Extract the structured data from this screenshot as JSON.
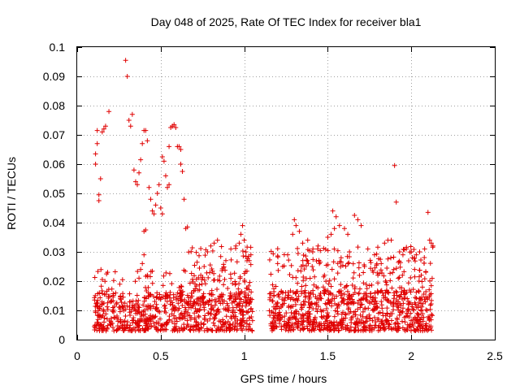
{
  "chart_data": {
    "type": "scatter",
    "title": "Day 048 of 2025, Rate Of TEC Index for receiver bla1",
    "xlabel": "GPS time / hours",
    "ylabel": "ROTI / TECUs",
    "xlim": [
      0,
      2.5
    ],
    "ylim": [
      0,
      0.1
    ],
    "xticks": [
      0,
      0.5,
      1,
      1.5,
      2,
      2.5
    ],
    "xtick_labels": [
      "0",
      "0.5",
      "1",
      "1.5",
      "2",
      "2.5"
    ],
    "yticks": [
      0,
      0.01,
      0.02,
      0.03,
      0.04,
      0.05,
      0.06,
      0.07,
      0.08,
      0.09,
      0.1
    ],
    "ytick_labels": [
      "0",
      "0.01",
      "0.02",
      "0.03",
      "0.04",
      "0.05",
      "0.06",
      "0.07",
      "0.08",
      "0.09",
      "0.1"
    ],
    "grid": true,
    "marker": "+",
    "color": "#e00000",
    "series": [
      {
        "points": [
          [
            0.11,
            0.0635
          ],
          [
            0.11,
            0.06
          ],
          [
            0.12,
            0.067
          ],
          [
            0.12,
            0.0715
          ],
          [
            0.13,
            0.0475
          ],
          [
            0.13,
            0.0495
          ],
          [
            0.14,
            0.055
          ],
          [
            0.15,
            0.071
          ],
          [
            0.16,
            0.072
          ],
          [
            0.17,
            0.073
          ],
          [
            0.19,
            0.078
          ],
          [
            0.29,
            0.0955
          ],
          [
            0.3,
            0.09
          ],
          [
            0.31,
            0.075
          ],
          [
            0.32,
            0.073
          ],
          [
            0.33,
            0.077
          ],
          [
            0.34,
            0.058
          ],
          [
            0.35,
            0.054
          ],
          [
            0.36,
            0.053
          ],
          [
            0.37,
            0.057
          ],
          [
            0.38,
            0.0615
          ],
          [
            0.39,
            0.067
          ],
          [
            0.4,
            0.0715
          ],
          [
            0.41,
            0.0715
          ],
          [
            0.42,
            0.068
          ],
          [
            0.4,
            0.037
          ],
          [
            0.41,
            0.0375
          ],
          [
            0.43,
            0.052
          ],
          [
            0.44,
            0.048
          ],
          [
            0.45,
            0.044
          ],
          [
            0.46,
            0.043
          ],
          [
            0.47,
            0.046
          ],
          [
            0.48,
            0.05
          ],
          [
            0.49,
            0.053
          ],
          [
            0.5,
            0.045
          ],
          [
            0.51,
            0.043
          ],
          [
            0.51,
            0.0625
          ],
          [
            0.52,
            0.061
          ],
          [
            0.53,
            0.056
          ],
          [
            0.54,
            0.052
          ],
          [
            0.55,
            0.053
          ],
          [
            0.55,
            0.066
          ],
          [
            0.56,
            0.0725
          ],
          [
            0.57,
            0.073
          ],
          [
            0.58,
            0.0735
          ],
          [
            0.59,
            0.0725
          ],
          [
            0.6,
            0.066
          ],
          [
            0.61,
            0.066
          ],
          [
            0.62,
            0.065
          ],
          [
            0.62,
            0.06
          ],
          [
            0.63,
            0.0575
          ],
          [
            0.64,
            0.048
          ],
          [
            0.65,
            0.038
          ],
          [
            0.66,
            0.0385
          ],
          [
            0.39,
            0.026
          ],
          [
            0.4,
            0.029
          ],
          [
            0.38,
            0.024
          ],
          [
            0.37,
            0.021
          ],
          [
            0.42,
            0.022
          ],
          [
            0.99,
            0.039
          ],
          [
            0.98,
            0.036
          ],
          [
            1.0,
            0.034
          ],
          [
            0.97,
            0.033
          ],
          [
            1.01,
            0.03
          ],
          [
            1.04,
            0.029
          ],
          [
            1.03,
            0.027
          ],
          [
            0.95,
            0.032
          ],
          [
            0.92,
            0.031
          ],
          [
            0.89,
            0.027
          ],
          [
            0.84,
            0.034
          ],
          [
            0.82,
            0.033
          ],
          [
            0.8,
            0.032
          ],
          [
            0.78,
            0.03
          ],
          [
            0.76,
            0.025
          ],
          [
            0.74,
            0.022
          ],
          [
            1.3,
            0.041
          ],
          [
            1.31,
            0.039
          ],
          [
            1.29,
            0.036
          ],
          [
            1.33,
            0.037
          ],
          [
            1.35,
            0.033
          ],
          [
            1.38,
            0.034
          ],
          [
            1.41,
            0.03
          ],
          [
            1.44,
            0.031
          ],
          [
            1.5,
            0.035
          ],
          [
            1.53,
            0.044
          ],
          [
            1.55,
            0.042
          ],
          [
            1.57,
            0.039
          ],
          [
            1.54,
            0.038
          ],
          [
            1.52,
            0.036
          ],
          [
            1.6,
            0.038
          ],
          [
            1.62,
            0.036
          ],
          [
            1.66,
            0.0425
          ],
          [
            1.68,
            0.041
          ],
          [
            1.7,
            0.039
          ],
          [
            1.74,
            0.031
          ],
          [
            1.78,
            0.029
          ],
          [
            1.82,
            0.026
          ],
          [
            1.84,
            0.033
          ],
          [
            1.86,
            0.034
          ],
          [
            1.88,
            0.034
          ],
          [
            1.9,
            0.0595
          ],
          [
            1.91,
            0.047
          ],
          [
            1.93,
            0.03
          ],
          [
            1.95,
            0.029
          ],
          [
            1.97,
            0.031
          ],
          [
            2.0,
            0.03
          ],
          [
            2.03,
            0.029
          ],
          [
            2.05,
            0.03
          ],
          [
            2.08,
            0.031
          ],
          [
            2.1,
            0.0435
          ],
          [
            2.11,
            0.034
          ],
          [
            2.12,
            0.033
          ],
          [
            2.13,
            0.032
          ],
          [
            1.2,
            0.026
          ],
          [
            1.23,
            0.025
          ],
          [
            1.26,
            0.029
          ],
          [
            1.45,
            0.026
          ],
          [
            1.48,
            0.022
          ],
          [
            1.58,
            0.028
          ],
          [
            1.63,
            0.03
          ],
          [
            1.72,
            0.025
          ],
          [
            1.8,
            0.022
          ],
          [
            2.02,
            0.024
          ],
          [
            2.06,
            0.022
          ],
          [
            1.25,
            0.004
          ],
          [
            1.19,
            0.0045
          ],
          [
            1.48,
            0.004
          ],
          [
            1.72,
            0.0045
          ],
          [
            0.6,
            0.003
          ],
          [
            0.22,
            0.003
          ]
        ]
      }
    ],
    "dense_clusters": [
      {
        "x_range": [
          0.1,
          1.05
        ],
        "y_range": [
          0.003,
          0.016
        ],
        "n": 650
      },
      {
        "x_range": [
          0.1,
          1.05
        ],
        "y_range": [
          0.012,
          0.024
        ],
        "n": 90
      },
      {
        "x_range": [
          0.62,
          1.05
        ],
        "y_range": [
          0.012,
          0.032
        ],
        "n": 110
      },
      {
        "x_range": [
          1.15,
          2.13
        ],
        "y_range": [
          0.003,
          0.017
        ],
        "n": 700
      },
      {
        "x_range": [
          1.15,
          2.13
        ],
        "y_range": [
          0.012,
          0.032
        ],
        "n": 260
      }
    ]
  }
}
